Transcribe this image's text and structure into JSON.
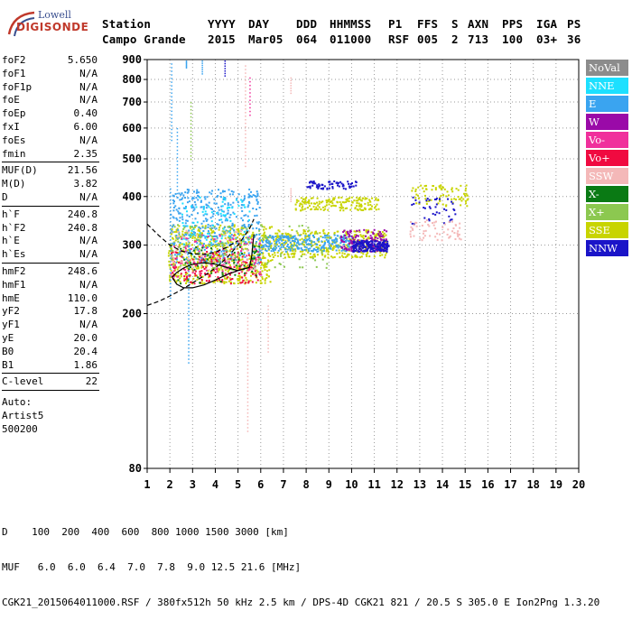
{
  "logo": {
    "line1": "Lowell",
    "line2": "DIGISONDE"
  },
  "header": {
    "row1": [
      "Station",
      "YYYY",
      "DAY",
      "DDD",
      "HHMMSS",
      "P1",
      "FFS",
      "S",
      "AXN",
      "PPS",
      "IGA",
      "PS"
    ],
    "row2": [
      "Campo Grande",
      "2015",
      "Mar05",
      "064",
      "011000",
      "RSF",
      "005",
      "2",
      "713",
      "100",
      "03+",
      "36"
    ]
  },
  "params": {
    "group1": [
      {
        "name": "foF2",
        "value": "5.650"
      },
      {
        "name": "foF1",
        "value": "N/A"
      },
      {
        "name": "foF1p",
        "value": "N/A"
      },
      {
        "name": "foE",
        "value": "N/A"
      },
      {
        "name": "foEp",
        "value": "0.40"
      },
      {
        "name": "fxI",
        "value": "6.00"
      },
      {
        "name": "foEs",
        "value": "N/A"
      },
      {
        "name": "fmin",
        "value": "2.35"
      }
    ],
    "group2": [
      {
        "name": "MUF(D)",
        "value": "21.56"
      },
      {
        "name": "M(D)",
        "value": "3.82"
      },
      {
        "name": "D",
        "value": "N/A"
      }
    ],
    "group3": [
      {
        "name": "h`F",
        "value": "240.8"
      },
      {
        "name": "h`F2",
        "value": "240.8"
      },
      {
        "name": "h`E",
        "value": "N/A"
      },
      {
        "name": "h`Es",
        "value": "N/A"
      }
    ],
    "group4": [
      {
        "name": "hmF2",
        "value": "248.6"
      },
      {
        "name": "hmF1",
        "value": "N/A"
      },
      {
        "name": "hmE",
        "value": "110.0"
      },
      {
        "name": "yF2",
        "value": "17.8"
      },
      {
        "name": "yF1",
        "value": "N/A"
      },
      {
        "name": "yE",
        "value": "20.0"
      },
      {
        "name": "B0",
        "value": "20.4"
      },
      {
        "name": "B1",
        "value": "1.86"
      }
    ],
    "clevel": {
      "name": "C-level",
      "value": "22"
    },
    "auto_lines": [
      "Auto:",
      "Artist5",
      "500200"
    ]
  },
  "legend": [
    {
      "label": "NoVal",
      "color": "#8c8c8c"
    },
    {
      "label": "NNE",
      "color": "#1de0ff"
    },
    {
      "label": "E",
      "color": "#3aa4f0"
    },
    {
      "label": "W",
      "color": "#9a0aa8"
    },
    {
      "label": "Vo-",
      "color": "#f0309c"
    },
    {
      "label": "Vo+",
      "color": "#f00a40"
    },
    {
      "label": "SSW",
      "color": "#f4b8b8"
    },
    {
      "label": "X-",
      "color": "#0a7a14"
    },
    {
      "label": "X+",
      "color": "#8cc850"
    },
    {
      "label": "SSE",
      "color": "#c8d400"
    },
    {
      "label": "NNW",
      "color": "#1a14c8"
    }
  ],
  "footer": {
    "d_line": "D    100  200  400  600  800 1000 1500 3000 [km]",
    "muf_line": "MUF   6.0  6.0  6.4  7.0  7.8  9.0 12.5 21.6 [MHz]",
    "file_line": "CGK21_2015064011000.RSF / 380fx512h 50 kHz 2.5 km / DPS-4D CGK21 821 / 20.5 S 305.0 E Ion2Png 1.3.20"
  },
  "chart_data": {
    "type": "scatter",
    "xlim": [
      1,
      20
    ],
    "ylim": [
      80,
      900
    ],
    "yscale": "log",
    "xticks": [
      "1",
      "2",
      "3",
      "4",
      "5",
      "6",
      "7",
      "8",
      "9",
      "10",
      "11",
      "12",
      "13",
      "14",
      "15",
      "16",
      "17",
      "18",
      "19",
      "20"
    ],
    "yticks": [
      {
        "value": 80,
        "label": "80"
      },
      {
        "value": 200,
        "label": "200"
      },
      {
        "value": 300,
        "label": "300"
      },
      {
        "value": 400,
        "label": "400"
      },
      {
        "value": 500,
        "label": "500"
      },
      {
        "value": 600,
        "label": "600"
      },
      {
        "value": 700,
        "label": "700"
      },
      {
        "value": 800,
        "label": "800"
      },
      {
        "value": 900,
        "label": "900"
      }
    ],
    "grid": "dotted",
    "legend_position": "right",
    "clusters": [
      {
        "color": "#c8d400",
        "x": [
          1.9,
          6.5
        ],
        "y": [
          240,
          340
        ],
        "n": 600
      },
      {
        "color": "#c8d400",
        "x": [
          6.5,
          11.5
        ],
        "y": [
          280,
          330
        ],
        "n": 380
      },
      {
        "color": "#c8d400",
        "x": [
          7.5,
          11.2
        ],
        "y": [
          370,
          400
        ],
        "n": 170
      },
      {
        "color": "#c8d400",
        "x": [
          12.6,
          15.1
        ],
        "y": [
          380,
          430
        ],
        "n": 80
      },
      {
        "color": "#3aa4f0",
        "x": [
          2.0,
          6.0
        ],
        "y": [
          270,
          420
        ],
        "n": 420
      },
      {
        "color": "#3aa4f0",
        "x": [
          6.0,
          10.0
        ],
        "y": [
          290,
          320
        ],
        "n": 260
      },
      {
        "color": "#1de0ff",
        "x": [
          2.5,
          5.5
        ],
        "y": [
          300,
          400
        ],
        "n": 90
      },
      {
        "color": "#9a0aa8",
        "x": [
          9.5,
          11.5
        ],
        "y": [
          290,
          330
        ],
        "n": 140
      },
      {
        "color": "#1a14c8",
        "x": [
          10.0,
          11.6
        ],
        "y": [
          290,
          310
        ],
        "n": 200
      },
      {
        "color": "#1a14c8",
        "x": [
          8.0,
          10.2
        ],
        "y": [
          420,
          440
        ],
        "n": 70
      },
      {
        "color": "#1a14c8",
        "x": [
          12.6,
          14.6
        ],
        "y": [
          340,
          400
        ],
        "n": 40
      },
      {
        "color": "#f00a40",
        "x": [
          2.0,
          6.0
        ],
        "y": [
          240,
          290
        ],
        "n": 150
      },
      {
        "color": "#f0309c",
        "x": [
          2.0,
          6.0
        ],
        "y": [
          250,
          320
        ],
        "n": 120
      },
      {
        "color": "#8cc850",
        "x": [
          2.0,
          9.0
        ],
        "y": [
          260,
          340
        ],
        "n": 140
      },
      {
        "color": "#0a7a14",
        "x": [
          2.0,
          6.0
        ],
        "y": [
          240,
          300
        ],
        "n": 60
      },
      {
        "color": "#f4b8b8",
        "x": [
          12.5,
          14.8
        ],
        "y": [
          310,
          350
        ],
        "n": 60
      },
      {
        "color": "#f4b8b8",
        "x": [
          2.0,
          6.0
        ],
        "y": [
          260,
          330
        ],
        "n": 60
      }
    ],
    "vertical_traces": [
      {
        "x": 2.0,
        "y": [
          220,
          420
        ],
        "color": "#3aa4f0"
      },
      {
        "x": 2.05,
        "y": [
          560,
          880
        ],
        "color": "#3aa4f0"
      },
      {
        "x": 2.3,
        "y": [
          400,
          600
        ],
        "color": "#3aa4f0"
      },
      {
        "x": 2.7,
        "y": [
          860,
          895
        ],
        "color": "#3aa4f0"
      },
      {
        "x": 2.8,
        "y": [
          150,
          320
        ],
        "color": "#3aa4f0"
      },
      {
        "x": 2.9,
        "y": [
          500,
          700
        ],
        "color": "#8cc850"
      },
      {
        "x": 3.4,
        "y": [
          830,
          895
        ],
        "color": "#3aa4f0"
      },
      {
        "x": 4.4,
        "y": [
          820,
          895
        ],
        "color": "#1a14c8"
      },
      {
        "x": 5.3,
        "y": [
          480,
          870
        ],
        "color": "#f4b8b8"
      },
      {
        "x": 5.4,
        "y": [
          100,
          200
        ],
        "color": "#f4b8b8"
      },
      {
        "x": 5.5,
        "y": [
          650,
          810
        ],
        "color": "#f0309c"
      },
      {
        "x": 7.3,
        "y": [
          740,
          810
        ],
        "color": "#f4b8b8"
      },
      {
        "x": 7.3,
        "y": [
          390,
          420
        ],
        "color": "#f4b8b8"
      },
      {
        "x": 6.3,
        "y": [
          160,
          210
        ],
        "color": "#f4b8b8"
      }
    ],
    "curves": [
      {
        "style": "dashed",
        "x": [
          1.0,
          1.5,
          2.0,
          2.5,
          3.0,
          3.5,
          4.0,
          4.5,
          5.0
        ],
        "y": [
          340,
          318,
          300,
          290,
          285,
          284,
          288,
          296,
          308
        ]
      },
      {
        "style": "dashed",
        "x": [
          1.0,
          1.5,
          2.0,
          2.5,
          3.0,
          3.5,
          4.0,
          4.5,
          5.0,
          5.5,
          5.7
        ],
        "y": [
          210,
          215,
          222,
          230,
          240,
          250,
          262,
          278,
          300,
          330,
          350
        ]
      },
      {
        "style": "solid",
        "x": [
          2.1,
          2.3,
          2.6,
          3.0,
          3.5,
          4.0,
          4.5,
          5.0,
          5.5
        ],
        "y": [
          248,
          238,
          233,
          233,
          237,
          244,
          252,
          258,
          263
        ]
      },
      {
        "style": "solid",
        "x": [
          2.1,
          2.3,
          2.6,
          3.0,
          3.5,
          4.0,
          4.5,
          5.0,
          5.5
        ],
        "y": [
          248,
          255,
          262,
          268,
          270,
          268,
          263,
          258,
          263
        ]
      },
      {
        "style": "solid",
        "x": [
          5.5,
          5.6,
          5.7
        ],
        "y": [
          263,
          280,
          320
        ]
      }
    ]
  }
}
